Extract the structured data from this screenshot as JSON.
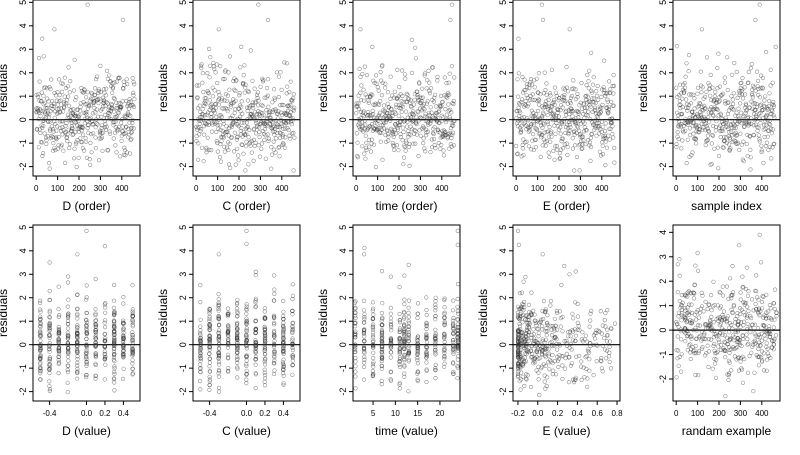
{
  "figure": {
    "layout": "2 rows x 5 columns of residual scatter panels",
    "point_color": "#333333",
    "line_color": "#000000"
  },
  "chart_data": [
    {
      "type": "scatter",
      "xlabel": "D (order)",
      "ylabel": "residuals",
      "xlim": [
        -15,
        485
      ],
      "ylim": [
        -2.4,
        5.1
      ],
      "xticks": [
        0,
        100,
        200,
        300,
        400
      ],
      "yticks": [
        -2,
        -1,
        0,
        1,
        2,
        3,
        4,
        5
      ],
      "reference_line_y": 0,
      "x_kind": "index",
      "n_points": 460,
      "highlights": [
        {
          "x": 240,
          "y": 4.9
        },
        {
          "x": 405,
          "y": 4.25
        },
        {
          "x": 85,
          "y": 3.85
        },
        {
          "x": 28,
          "y": 3.45
        },
        {
          "x": 35,
          "y": 2.7
        },
        {
          "x": 180,
          "y": 2.55
        }
      ]
    },
    {
      "type": "scatter",
      "xlabel": "C (order)",
      "ylabel": "residuals",
      "xlim": [
        -15,
        485
      ],
      "ylim": [
        -2.4,
        5.1
      ],
      "xticks": [
        0,
        100,
        200,
        300,
        400
      ],
      "yticks": [
        -2,
        -1,
        0,
        1,
        2,
        3,
        4,
        5
      ],
      "reference_line_y": 0,
      "x_kind": "index",
      "n_points": 460,
      "highlights": [
        {
          "x": 290,
          "y": 4.9
        },
        {
          "x": 335,
          "y": 4.25
        },
        {
          "x": 105,
          "y": 3.85
        },
        {
          "x": 210,
          "y": 3.1
        },
        {
          "x": 255,
          "y": 2.95
        }
      ]
    },
    {
      "type": "scatter",
      "xlabel": "time (order)",
      "ylabel": "residuals",
      "xlim": [
        -15,
        485
      ],
      "ylim": [
        -2.4,
        5.1
      ],
      "xticks": [
        0,
        100,
        200,
        300,
        400
      ],
      "yticks": [
        -2,
        -1,
        0,
        1,
        2,
        3,
        4,
        5
      ],
      "reference_line_y": 0,
      "x_kind": "index",
      "n_points": 460,
      "highlights": [
        {
          "x": 448,
          "y": 4.9
        },
        {
          "x": 440,
          "y": 4.25
        },
        {
          "x": 20,
          "y": 3.85
        },
        {
          "x": 260,
          "y": 3.4
        },
        {
          "x": 75,
          "y": 3.1
        }
      ]
    },
    {
      "type": "scatter",
      "xlabel": "E (order)",
      "ylabel": "residuals",
      "xlim": [
        -15,
        485
      ],
      "ylim": [
        -2.4,
        5.1
      ],
      "xticks": [
        0,
        100,
        200,
        300,
        400
      ],
      "yticks": [
        -2,
        -1,
        0,
        1,
        2,
        3,
        4,
        5
      ],
      "reference_line_y": 0,
      "x_kind": "index",
      "n_points": 460,
      "highlights": [
        {
          "x": 120,
          "y": 4.9
        },
        {
          "x": 125,
          "y": 4.25
        },
        {
          "x": 250,
          "y": 3.85
        },
        {
          "x": 10,
          "y": 3.45
        },
        {
          "x": 350,
          "y": 2.85
        }
      ]
    },
    {
      "type": "scatter",
      "xlabel": "sample index",
      "ylabel": "residuals",
      "xlim": [
        -15,
        485
      ],
      "ylim": [
        -2.4,
        5.1
      ],
      "xticks": [
        0,
        100,
        200,
        300,
        400
      ],
      "yticks": [
        -2,
        -1,
        0,
        1,
        2,
        3,
        4,
        5
      ],
      "reference_line_y": 0,
      "x_kind": "index",
      "n_points": 460,
      "highlights": [
        {
          "x": 390,
          "y": 4.9
        },
        {
          "x": 370,
          "y": 4.25
        },
        {
          "x": 120,
          "y": 3.85
        },
        {
          "x": 465,
          "y": 3.1
        },
        {
          "x": 60,
          "y": 2.75
        }
      ]
    },
    {
      "type": "scatter",
      "xlabel": "D (value)",
      "ylabel": "residuals",
      "xlim": [
        -0.58,
        0.58
      ],
      "ylim": [
        -2.4,
        5.1
      ],
      "xticks": [
        -0.4,
        0.0,
        0.2,
        0.4
      ],
      "xticklabels": [
        "-0.4",
        "0.0",
        "0.2",
        "0.4"
      ],
      "yticks": [
        -2,
        -1,
        0,
        1,
        2,
        3,
        4,
        5
      ],
      "reference_line_y": 0,
      "x_kind": "discrete",
      "x_levels": [
        -0.5,
        -0.4,
        -0.3,
        -0.2,
        -0.1,
        0.0,
        0.1,
        0.2,
        0.3,
        0.4,
        0.5
      ],
      "n_points": 460,
      "highlights": [
        {
          "x": 0.0,
          "y": 4.85
        },
        {
          "x": 0.2,
          "y": 4.2
        },
        {
          "x": -0.1,
          "y": 3.85
        },
        {
          "x": -0.4,
          "y": 3.5
        },
        {
          "x": 0.1,
          "y": 2.8
        }
      ]
    },
    {
      "type": "scatter",
      "xlabel": "C (value)",
      "ylabel": "residuals",
      "xlim": [
        -0.58,
        0.58
      ],
      "ylim": [
        -2.4,
        5.1
      ],
      "xticks": [
        -0.4,
        0.0,
        0.2,
        0.4
      ],
      "xticklabels": [
        "-0.4",
        "0.0",
        "0.2",
        "0.4"
      ],
      "yticks": [
        -2,
        -1,
        0,
        1,
        2,
        3,
        4,
        5
      ],
      "reference_line_y": 0,
      "x_kind": "discrete",
      "x_levels": [
        -0.5,
        -0.4,
        -0.3,
        -0.2,
        -0.1,
        0.0,
        0.1,
        0.2,
        0.3,
        0.4,
        0.5
      ],
      "n_points": 460,
      "highlights": [
        {
          "x": 0.0,
          "y": 4.85
        },
        {
          "x": 0.0,
          "y": 4.3
        },
        {
          "x": -0.3,
          "y": 3.85
        },
        {
          "x": 0.1,
          "y": 3.1
        },
        {
          "x": 0.3,
          "y": 2.95
        }
      ]
    },
    {
      "type": "scatter",
      "xlabel": "time (value)",
      "ylabel": "residuals",
      "xlim": [
        0.5,
        24.5
      ],
      "ylim": [
        -2.4,
        5.1
      ],
      "xticks": [
        5,
        10,
        15,
        20
      ],
      "xticklabels": [
        "5",
        "10",
        "15",
        "20"
      ],
      "yticks": [
        -2,
        -1,
        0,
        1,
        2,
        3,
        4,
        5
      ],
      "reference_line_y": 0,
      "x_kind": "discrete",
      "x_levels": [
        1,
        3,
        5,
        7,
        9,
        11,
        12,
        13,
        15,
        17,
        19,
        21,
        23,
        24
      ],
      "n_points": 460,
      "highlights": [
        {
          "x": 24,
          "y": 4.85
        },
        {
          "x": 24,
          "y": 4.25
        },
        {
          "x": 3,
          "y": 3.85
        },
        {
          "x": 13,
          "y": 3.4
        },
        {
          "x": 9,
          "y": 2.9
        }
      ]
    },
    {
      "type": "scatter",
      "xlabel": "E (value)",
      "ylabel": "residuals",
      "xlim": [
        -0.25,
        0.83
      ],
      "ylim": [
        -2.4,
        5.1
      ],
      "xticks": [
        -0.2,
        0.0,
        0.2,
        0.4,
        0.6,
        0.8
      ],
      "xticklabels": [
        "-0.2",
        "0.0",
        "0.2",
        "0.4",
        "0.6",
        "0.8"
      ],
      "yticks": [
        -2,
        -1,
        0,
        1,
        2,
        3,
        4,
        5
      ],
      "reference_line_y": 0,
      "x_kind": "skewed",
      "n_points": 460,
      "highlights": [
        {
          "x": -0.2,
          "y": 4.85
        },
        {
          "x": -0.19,
          "y": 4.25
        },
        {
          "x": 0.05,
          "y": 3.85
        },
        {
          "x": 0.32,
          "y": 3.0
        },
        {
          "x": 0.78,
          "y": 0.9
        }
      ]
    },
    {
      "type": "scatter",
      "xlabel": "randam example",
      "ylabel": "residuals",
      "xlim": [
        -15,
        485
      ],
      "ylim": [
        -2.9,
        4.3
      ],
      "xticks": [
        0,
        100,
        200,
        300,
        400
      ],
      "yticks": [
        -2,
        -1,
        0,
        1,
        2,
        3,
        4
      ],
      "reference_line_y": 0,
      "x_kind": "random",
      "n_points": 460,
      "highlights": [
        {
          "x": 390,
          "y": 3.9
        },
        {
          "x": 100,
          "y": 3.15
        },
        {
          "x": 15,
          "y": 2.9
        },
        {
          "x": 230,
          "y": -2.7
        },
        {
          "x": 360,
          "y": -2.5
        }
      ]
    }
  ]
}
